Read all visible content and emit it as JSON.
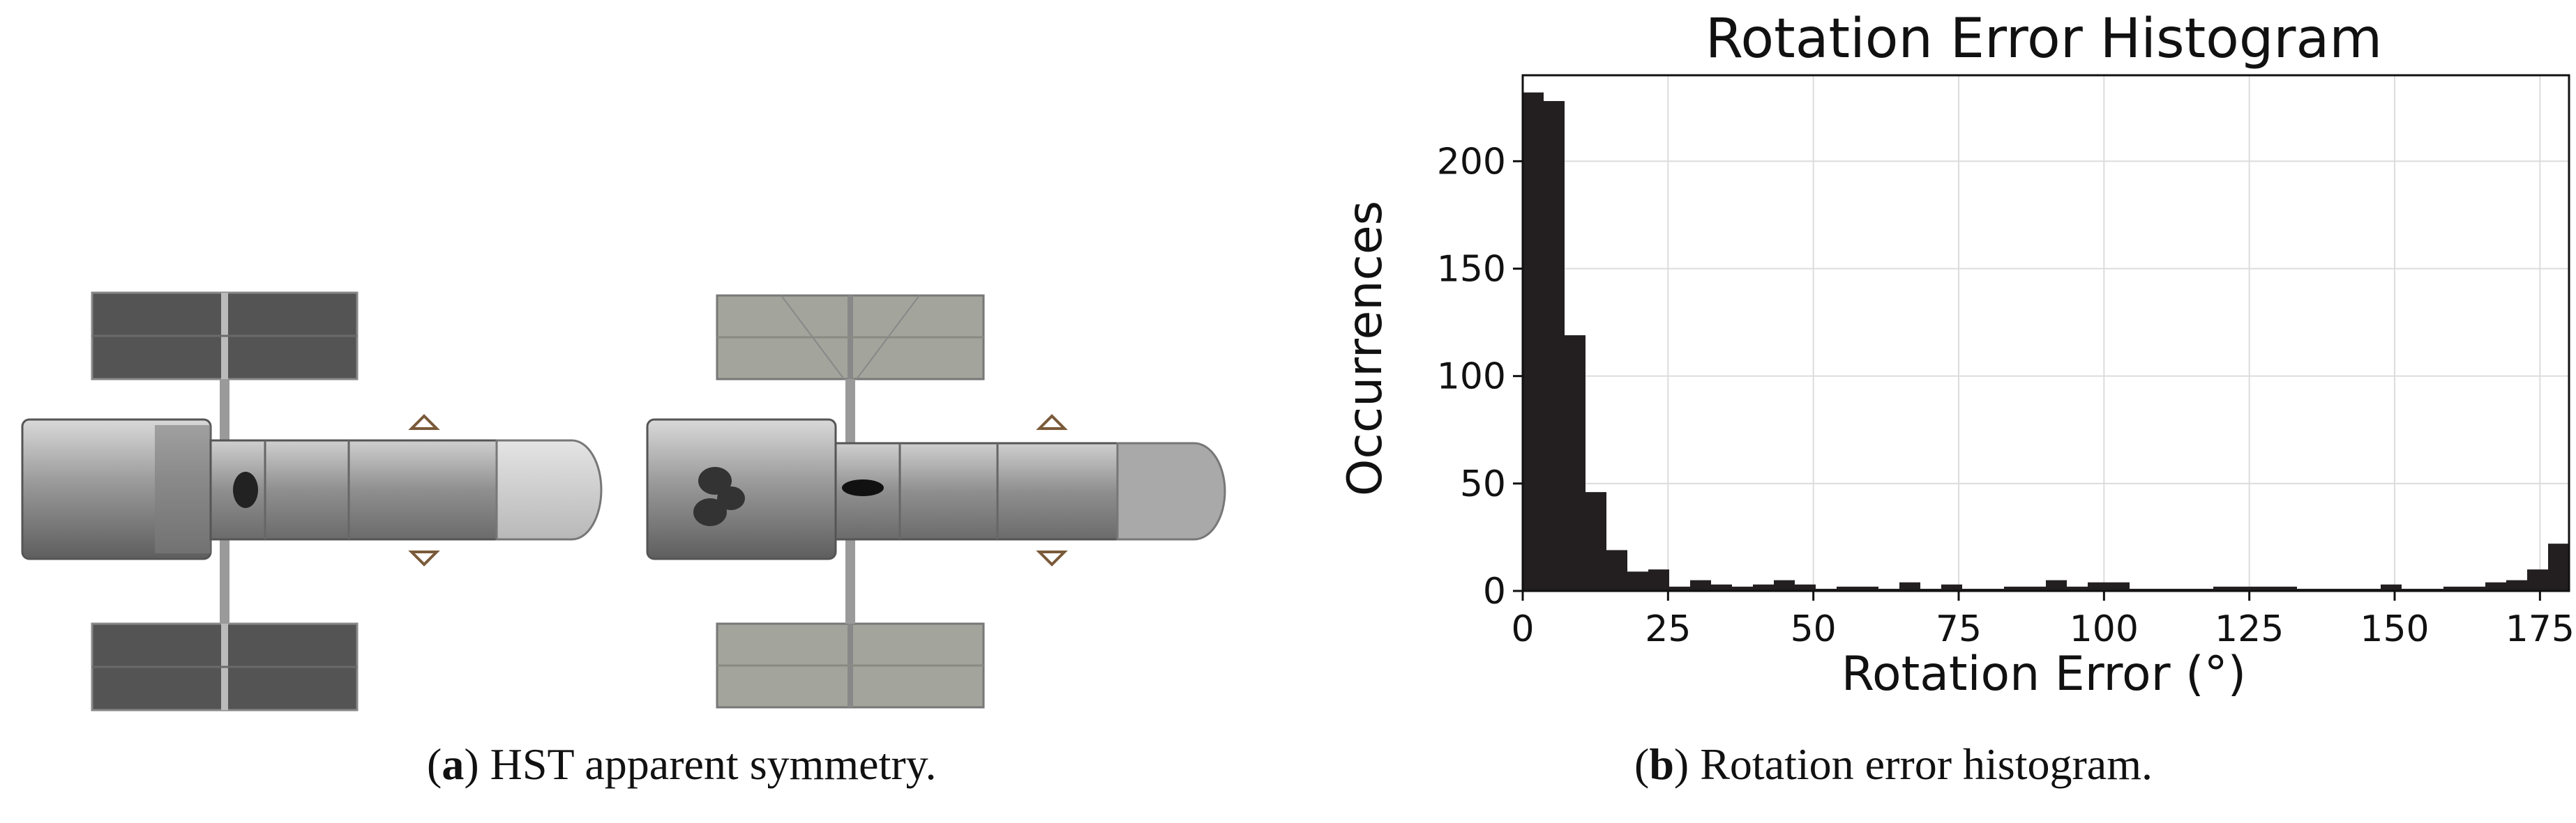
{
  "panel_a": {
    "caption_letter": "a",
    "caption_text": " HST apparent symmetry."
  },
  "panel_b": {
    "caption_letter": "b",
    "caption_text": " Rotation error histogram."
  },
  "chart_data": {
    "type": "bar",
    "title": "Rotation Error Histogram",
    "xlabel": "Rotation Error (°)",
    "ylabel": "Occurrences",
    "xlim": [
      0,
      180
    ],
    "ylim": [
      0,
      240
    ],
    "xticks": [
      0,
      25,
      50,
      75,
      100,
      125,
      150,
      175
    ],
    "yticks": [
      0,
      50,
      100,
      150,
      200
    ],
    "bin_width": 3.6,
    "bin_starts": [
      0,
      3.6,
      7.2,
      10.8,
      14.4,
      18,
      21.6,
      25.2,
      28.8,
      32.4,
      36,
      39.6,
      43.2,
      46.8,
      50.4,
      54,
      57.6,
      61.2,
      64.8,
      68.4,
      72,
      75.6,
      79.2,
      82.8,
      86.4,
      90,
      93.6,
      97.2,
      100.8,
      104.4,
      108,
      111.6,
      115.2,
      118.8,
      122.4,
      126,
      129.6,
      133.2,
      136.8,
      140.4,
      144,
      147.6,
      151.2,
      154.8,
      158.4,
      162,
      165.6,
      169.2,
      172.8,
      176.4
    ],
    "values": [
      232,
      228,
      119,
      46,
      19,
      9,
      10,
      2,
      5,
      3,
      2,
      3,
      5,
      3,
      1,
      2,
      2,
      1,
      4,
      1,
      3,
      1,
      1,
      2,
      2,
      5,
      2,
      4,
      4,
      1,
      1,
      1,
      1,
      2,
      2,
      2,
      2,
      1,
      1,
      1,
      1,
      3,
      1,
      1,
      2,
      2,
      4,
      5,
      10,
      22
    ],
    "grid": true,
    "color": "#231f20"
  }
}
